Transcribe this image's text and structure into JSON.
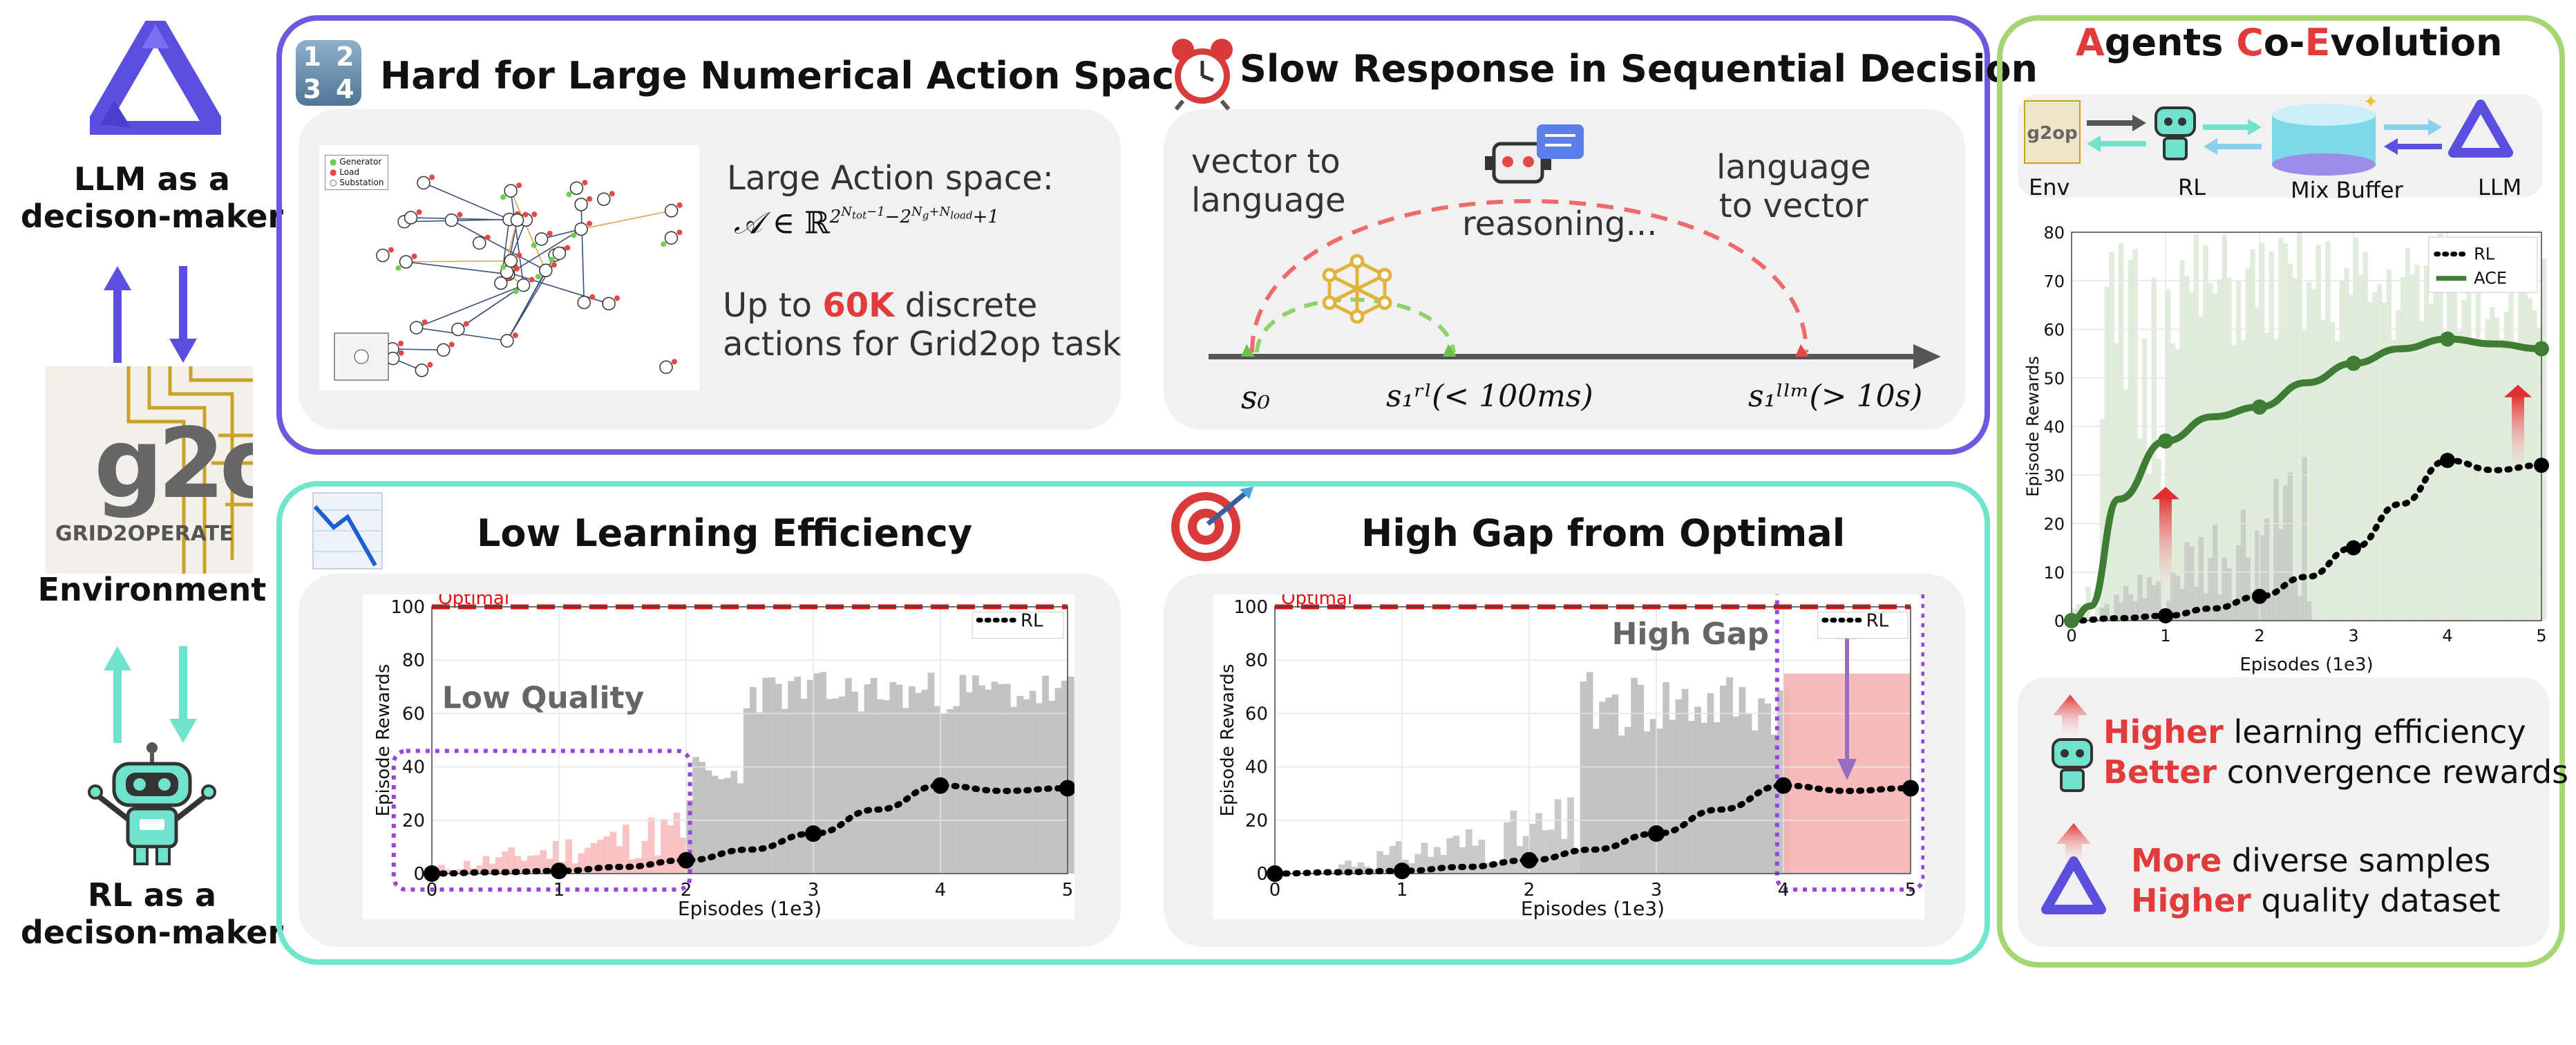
{
  "left": {
    "llm_label_1": "LLM as a",
    "llm_label_2": "decison-maker",
    "env_label": "Environment",
    "rl_label_1": "RL as a",
    "rl_label_2": "decison-maker",
    "grid_logo_caption": "GRID2OPERATE"
  },
  "panel_action": {
    "title": "Hard for Large Numerical Action Space",
    "icon_digits": [
      "1",
      "2",
      "3",
      "4"
    ],
    "legend": [
      "Generator",
      "Load",
      "Substation"
    ],
    "large_action_label": "Large Action space:",
    "formula": "𝒜 ∈ ℝ^(2^(N_tot−1) − 2^(N_g+N_load) + 1)",
    "upto_prefix": "Up to ",
    "upto_highlight": "60K",
    "upto_suffix": " discrete",
    "upto_line2": "actions for Grid2op task"
  },
  "panel_slow": {
    "title": "Slow Response in Sequential Decision",
    "vec_to_lang_1": "vector to",
    "vec_to_lang_2": "language",
    "lang_to_vec_1": "language",
    "lang_to_vec_2": "to vector",
    "reasoning": "reasoning...",
    "s0": "s₀",
    "s1_rl": "s₁ʳˡ(< 100ms)",
    "s1_llm": "s₁ˡˡᵐ(> 10s)"
  },
  "panel_low": {
    "title": "Low Learning Efficiency",
    "optimal_label": "Optimal",
    "annotation": "Low Quality",
    "legend_rl": "RL",
    "ylabel": "Episode Rewards",
    "xlabel": "Episodes (1e3)",
    "yticks": [
      "0",
      "20",
      "40",
      "60",
      "80",
      "100"
    ],
    "xticks": [
      "0",
      "1",
      "2",
      "3",
      "4",
      "5"
    ]
  },
  "panel_gap": {
    "title": "High Gap from Optimal",
    "optimal_label": "Optimal",
    "annotation": "High Gap",
    "legend_rl": "RL",
    "ylabel": "Episode Rewards",
    "xlabel": "Episodes (1e3)",
    "yticks": [
      "0",
      "20",
      "40",
      "60",
      "80",
      "100"
    ],
    "xticks": [
      "0",
      "1",
      "2",
      "3",
      "4",
      "5"
    ]
  },
  "panel_ace": {
    "title_parts": [
      {
        "t": "A",
        "red": true
      },
      {
        "t": "gents ",
        "red": false
      },
      {
        "t": "C",
        "red": true
      },
      {
        "t": "o-",
        "red": false
      },
      {
        "t": "E",
        "red": true
      },
      {
        "t": "volution",
        "red": false
      }
    ],
    "flow_labels": [
      "Env",
      "RL",
      "Mix Buffer",
      "LLM"
    ],
    "chart_legend": [
      "RL",
      "ACE"
    ],
    "ylabel": "Episode Rewards",
    "xlabel": "Episodes (1e3)",
    "yticks": [
      "0",
      "10",
      "20",
      "30",
      "40",
      "50",
      "60",
      "70",
      "80"
    ],
    "xticks": [
      "0",
      "1",
      "2",
      "3",
      "4",
      "5"
    ],
    "benefit1_h": "Higher",
    "benefit1_t": " learning efficiency",
    "benefit2_h": "Better",
    "benefit2_t": " convergence rewards",
    "benefit3_h": "More",
    "benefit3_t": " diverse samples",
    "benefit4_h": "Higher",
    "benefit4_t": " quality dataset"
  },
  "colors": {
    "purple_border": "#6a5ae0",
    "teal_border": "#70e6cf",
    "green_border": "#a6d672",
    "red_accent": "#e23b3b",
    "ace_green": "#3e7d33"
  },
  "chart_data": [
    {
      "type": "line",
      "title": "Low Learning Efficiency",
      "xlabel": "Episodes (1e3)",
      "ylabel": "Episode Rewards",
      "xlim": [
        0,
        5
      ],
      "ylim": [
        0,
        100
      ],
      "series": [
        {
          "name": "RL",
          "x": [
            0,
            0.5,
            1,
            1.5,
            2,
            2.5,
            3,
            3.5,
            4,
            4.5,
            5
          ],
          "y": [
            0,
            0.5,
            1,
            2.5,
            5,
            9,
            15,
            24,
            33,
            31,
            32
          ]
        }
      ],
      "reference_line": {
        "label": "Optimal",
        "y": 100
      }
    },
    {
      "type": "line",
      "title": "High Gap from Optimal",
      "xlabel": "Episodes (1e3)",
      "ylabel": "Episode Rewards",
      "xlim": [
        0,
        5
      ],
      "ylim": [
        0,
        100
      ],
      "series": [
        {
          "name": "RL",
          "x": [
            0,
            0.5,
            1,
            1.5,
            2,
            2.5,
            3,
            3.5,
            4,
            4.5,
            5
          ],
          "y": [
            0,
            0.5,
            1,
            2.5,
            5,
            9,
            15,
            24,
            33,
            31,
            32
          ]
        }
      ],
      "reference_line": {
        "label": "Optimal",
        "y": 100
      }
    },
    {
      "type": "line",
      "xlabel": "Episodes (1e3)",
      "ylabel": "Episode Rewards",
      "xlim": [
        0,
        5
      ],
      "ylim": [
        0,
        80
      ],
      "legend": "top-right",
      "series": [
        {
          "name": "RL",
          "x": [
            0,
            0.5,
            1,
            1.5,
            2,
            2.5,
            3,
            3.5,
            4,
            4.5,
            5
          ],
          "y": [
            0,
            0.5,
            1,
            2.5,
            5,
            9,
            15,
            24,
            33,
            31,
            32
          ]
        },
        {
          "name": "ACE",
          "x": [
            0,
            0.2,
            0.5,
            1,
            1.5,
            2,
            2.5,
            3,
            3.5,
            4,
            4.5,
            5
          ],
          "y": [
            0,
            3,
            25,
            37,
            42,
            44,
            49,
            53,
            56,
            58,
            57,
            56
          ]
        }
      ]
    }
  ]
}
